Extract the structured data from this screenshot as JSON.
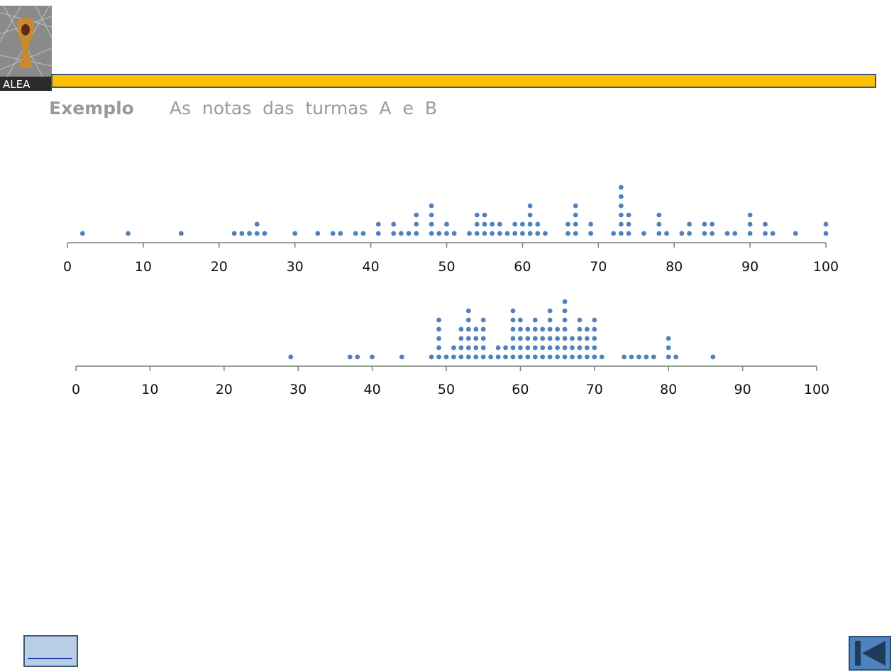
{
  "logo": {
    "text": "ALEA"
  },
  "header": {
    "label": "Exemplo",
    "title": "As notas das turmas A e B"
  },
  "colors": {
    "banner": "#FFC000",
    "banner_border": "#3B5A74",
    "dot": "#4F81BD",
    "axis": "#7f7f7f",
    "text_muted": "#9a9a9a"
  },
  "chart_data": [
    {
      "type": "scatter",
      "subtype": "dot-plot",
      "xlim": [
        0,
        100
      ],
      "x_ticks": [
        0,
        10,
        20,
        30,
        40,
        50,
        60,
        70,
        80,
        90,
        100
      ],
      "x_tick_labels": [
        "0",
        "10",
        "20",
        "30",
        "40",
        "50",
        "60",
        "70",
        "80",
        "90",
        "100"
      ],
      "grid": false,
      "points": [
        [
          2,
          1
        ],
        [
          8,
          1
        ],
        [
          15,
          1
        ],
        [
          22,
          1
        ],
        [
          23,
          1
        ],
        [
          24,
          1
        ],
        [
          25,
          2
        ],
        [
          26,
          1
        ],
        [
          30,
          1
        ],
        [
          33,
          1
        ],
        [
          35,
          1
        ],
        [
          36,
          1
        ],
        [
          38,
          1
        ],
        [
          39,
          1
        ],
        [
          41,
          2
        ],
        [
          43,
          2
        ],
        [
          44,
          1
        ],
        [
          45,
          1
        ],
        [
          46,
          3
        ],
        [
          48,
          4
        ],
        [
          49,
          1
        ],
        [
          50,
          2
        ],
        [
          51,
          1
        ],
        [
          53,
          1
        ],
        [
          54,
          3
        ],
        [
          55,
          3
        ],
        [
          56,
          2
        ],
        [
          57,
          2
        ],
        [
          58,
          1
        ],
        [
          59,
          2
        ],
        [
          60,
          2
        ],
        [
          61,
          4
        ],
        [
          62,
          2
        ],
        [
          63,
          1
        ],
        [
          66,
          2
        ],
        [
          67,
          4
        ],
        [
          69,
          2
        ],
        [
          72,
          1
        ],
        [
          73,
          6
        ],
        [
          74,
          3
        ],
        [
          76,
          1
        ],
        [
          78,
          3
        ],
        [
          79,
          1
        ],
        [
          81,
          1
        ],
        [
          82,
          2
        ],
        [
          84,
          2
        ],
        [
          85,
          2
        ],
        [
          87,
          1
        ],
        [
          88,
          1
        ],
        [
          90,
          3
        ],
        [
          92,
          2
        ],
        [
          93,
          1
        ],
        [
          96,
          1
        ],
        [
          100,
          2
        ]
      ]
    },
    {
      "type": "scatter",
      "subtype": "dot-plot",
      "xlim": [
        0,
        100
      ],
      "x_ticks": [
        0,
        10,
        20,
        30,
        40,
        50,
        60,
        70,
        80,
        90,
        100
      ],
      "x_tick_labels": [
        "0",
        "10",
        "20",
        "30",
        "40",
        "50",
        "60",
        "70",
        "80",
        "90",
        "100"
      ],
      "grid": false,
      "points": [
        [
          29,
          1
        ],
        [
          37,
          1
        ],
        [
          38,
          1
        ],
        [
          40,
          1
        ],
        [
          44,
          1
        ],
        [
          48,
          1
        ],
        [
          49,
          5
        ],
        [
          50,
          1
        ],
        [
          51,
          2
        ],
        [
          52,
          4
        ],
        [
          53,
          6
        ],
        [
          54,
          4
        ],
        [
          55,
          5
        ],
        [
          56,
          1
        ],
        [
          57,
          2
        ],
        [
          58,
          2
        ],
        [
          59,
          6
        ],
        [
          60,
          5
        ],
        [
          61,
          4
        ],
        [
          62,
          5
        ],
        [
          63,
          4
        ],
        [
          64,
          6
        ],
        [
          65,
          4
        ],
        [
          66,
          7
        ],
        [
          67,
          3
        ],
        [
          68,
          5
        ],
        [
          69,
          4
        ],
        [
          70,
          5
        ],
        [
          71,
          1
        ],
        [
          74,
          1
        ],
        [
          75,
          1
        ],
        [
          76,
          1
        ],
        [
          77,
          1
        ],
        [
          78,
          1
        ],
        [
          80,
          3
        ],
        [
          81,
          1
        ],
        [
          86,
          1
        ]
      ]
    }
  ],
  "nav": {
    "back_label": "",
    "home_icon": "skip-to-start-icon"
  }
}
